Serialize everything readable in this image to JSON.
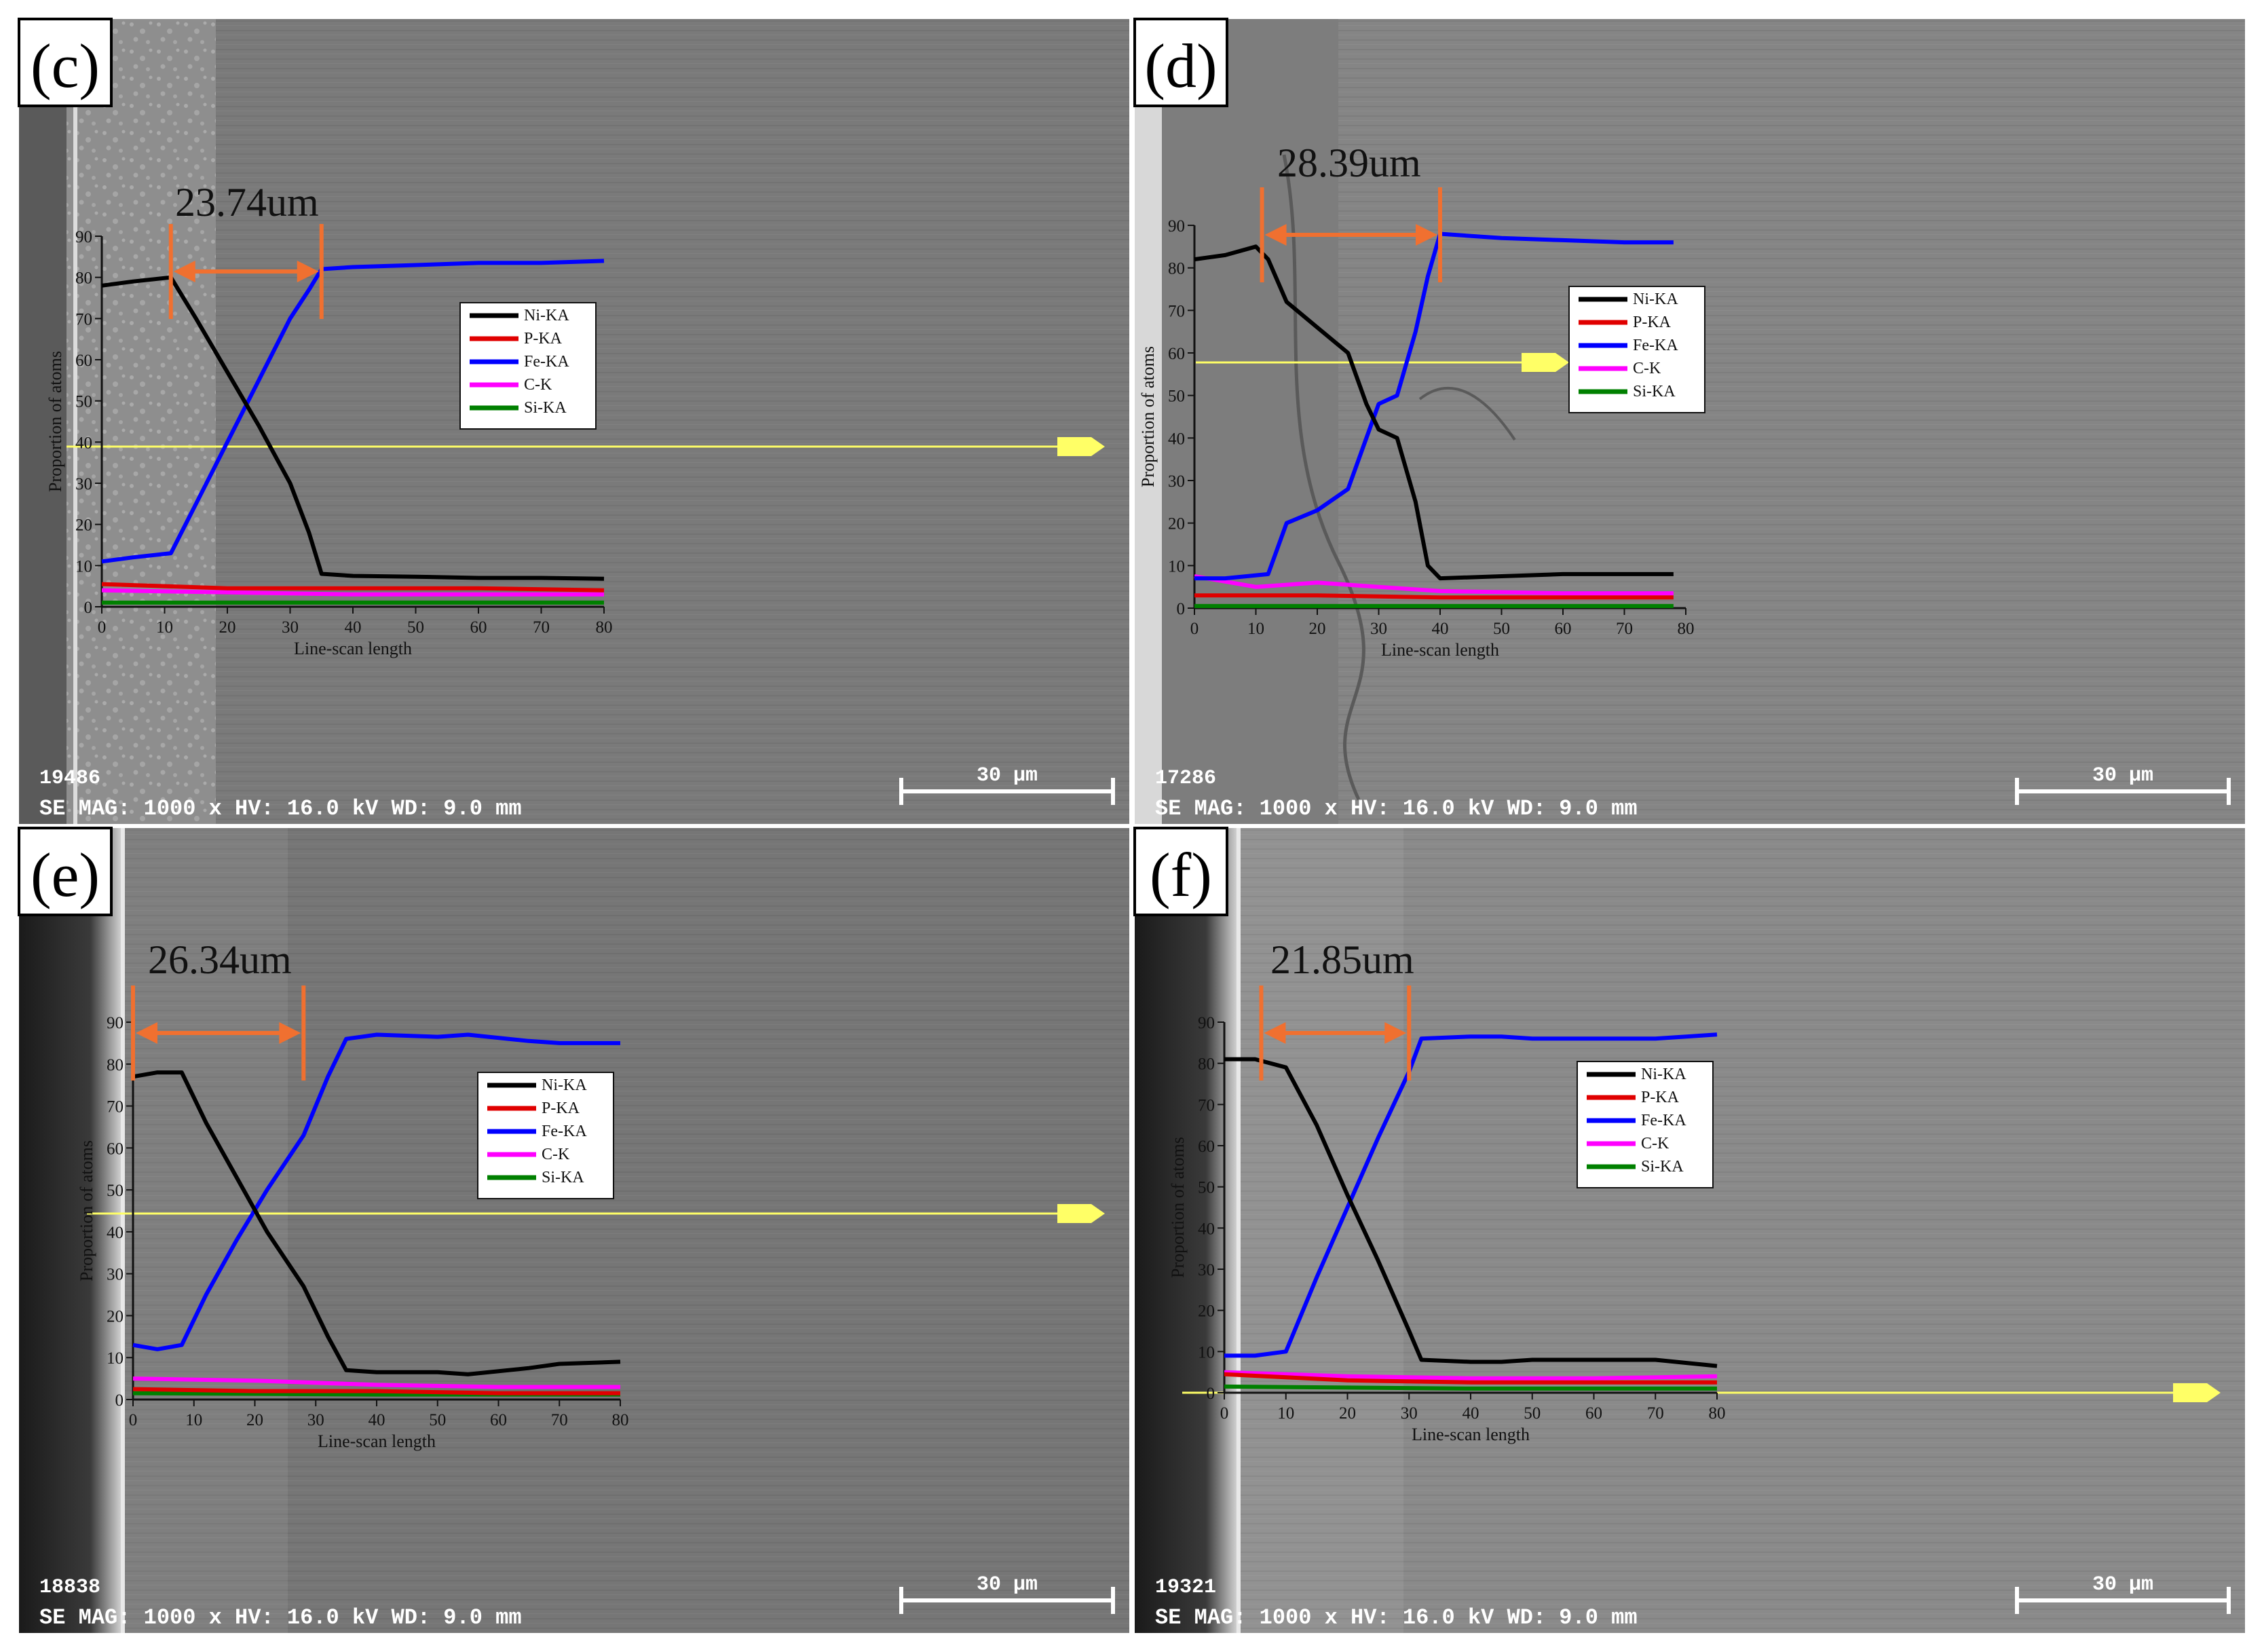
{
  "figure": {
    "description_free": true,
    "axis_title_y": "Proportion of atoms",
    "axis_title_x": "Line-scan length",
    "legend": [
      {
        "name": "Ni-KA",
        "color": "#000000"
      },
      {
        "name": "P-KA",
        "color": "#e00000"
      },
      {
        "name": "Fe-KA",
        "color": "#0000ff"
      },
      {
        "name": "C-K",
        "color": "#ff00ff"
      },
      {
        "name": "Si-KA",
        "color": "#008000"
      }
    ],
    "colors": {
      "thickness_marker": "#f07030",
      "scan_line": "#ffff66"
    },
    "scale_bar": "30 μm",
    "mag_text": "SE MAG: 1000 x  HV: 16.0 kV  WD: 9.0 mm"
  },
  "chart_data": [
    {
      "type": "line",
      "panel": "(c)",
      "image_id": "19486",
      "thickness_label": "23.74um",
      "thickness_range": [
        11,
        35
      ],
      "xlim": [
        0,
        80
      ],
      "ylim": [
        0,
        90
      ],
      "xticks": [
        0,
        10,
        20,
        30,
        40,
        50,
        60,
        70,
        80
      ],
      "yticks": [
        0,
        10,
        20,
        30,
        40,
        50,
        60,
        70,
        80,
        90
      ],
      "xlabel": "Line-scan length",
      "ylabel": "Proportion of atoms",
      "series": [
        {
          "name": "Ni-KA",
          "x": [
            0,
            5,
            11,
            15,
            20,
            25,
            30,
            33,
            35,
            40,
            50,
            60,
            70,
            80
          ],
          "values": [
            78,
            79,
            80,
            70,
            57,
            44,
            30,
            18,
            8,
            7.5,
            7.3,
            7,
            7,
            6.8
          ]
        },
        {
          "name": "P-KA",
          "x": [
            0,
            20,
            40,
            60,
            80
          ],
          "values": [
            5.5,
            4.5,
            4.5,
            4.5,
            4
          ]
        },
        {
          "name": "Fe-KA",
          "x": [
            0,
            5,
            11,
            15,
            20,
            25,
            30,
            33,
            35,
            40,
            50,
            60,
            70,
            80
          ],
          "values": [
            11,
            12,
            13,
            25,
            40,
            55,
            70,
            77,
            82,
            82.5,
            83,
            83.5,
            83.5,
            84
          ]
        },
        {
          "name": "C-K",
          "x": [
            0,
            20,
            40,
            60,
            80
          ],
          "values": [
            4,
            3.5,
            3,
            3,
            3
          ]
        },
        {
          "name": "Si-KA",
          "x": [
            0,
            40,
            80
          ],
          "values": [
            1,
            1,
            1
          ]
        }
      ]
    },
    {
      "type": "line",
      "panel": "(d)",
      "image_id": "17286",
      "thickness_label": "28.39um",
      "thickness_range": [
        11,
        40
      ],
      "xlim": [
        0,
        80
      ],
      "ylim": [
        0,
        90
      ],
      "xticks": [
        0,
        10,
        20,
        30,
        40,
        50,
        60,
        70,
        80
      ],
      "yticks": [
        0,
        10,
        20,
        30,
        40,
        50,
        60,
        70,
        80,
        90
      ],
      "xlabel": "Line-scan length",
      "ylabel": "Proportion of atoms",
      "series": [
        {
          "name": "Ni-KA",
          "x": [
            0,
            5,
            10,
            12,
            15,
            20,
            25,
            28,
            30,
            33,
            36,
            38,
            40,
            50,
            60,
            70,
            78
          ],
          "values": [
            82,
            83,
            85,
            82,
            72,
            66,
            60,
            48,
            42,
            40,
            25,
            10,
            7,
            7.5,
            8,
            8,
            8
          ]
        },
        {
          "name": "P-KA",
          "x": [
            0,
            20,
            40,
            60,
            78
          ],
          "values": [
            3,
            3,
            2.5,
            2.5,
            2.5
          ]
        },
        {
          "name": "Fe-KA",
          "x": [
            0,
            5,
            12,
            15,
            20,
            25,
            28,
            30,
            33,
            36,
            38,
            40,
            50,
            60,
            70,
            78
          ],
          "values": [
            7,
            7,
            8,
            20,
            23,
            28,
            40,
            48,
            50,
            65,
            78,
            88,
            87,
            86.5,
            86,
            86
          ]
        },
        {
          "name": "C-K",
          "x": [
            0,
            10,
            20,
            30,
            40,
            60,
            78
          ],
          "values": [
            7.5,
            5,
            6,
            5,
            4,
            3.5,
            3.5
          ]
        },
        {
          "name": "Si-KA",
          "x": [
            0,
            40,
            78
          ],
          "values": [
            0.5,
            0.5,
            0.5
          ]
        }
      ]
    },
    {
      "type": "line",
      "panel": "(e)",
      "image_id": "18838",
      "thickness_label": "26.34um",
      "thickness_range": [
        0,
        28
      ],
      "xlim": [
        0,
        80
      ],
      "ylim": [
        0,
        90
      ],
      "xticks": [
        0,
        10,
        20,
        30,
        40,
        50,
        60,
        70,
        80
      ],
      "yticks": [
        0,
        10,
        20,
        30,
        40,
        50,
        60,
        70,
        80,
        90
      ],
      "xlabel": "Line-scan length",
      "ylabel": "Proportion of atoms",
      "series": [
        {
          "name": "Ni-KA",
          "x": [
            0,
            4,
            8,
            12,
            17,
            22,
            28,
            32,
            35,
            40,
            50,
            55,
            65,
            70,
            80
          ],
          "values": [
            77,
            78,
            78,
            66,
            53,
            40,
            27,
            15,
            7,
            6.5,
            6.5,
            6,
            7.5,
            8.5,
            9
          ]
        },
        {
          "name": "P-KA",
          "x": [
            0,
            20,
            40,
            60,
            80
          ],
          "values": [
            2.5,
            2,
            2,
            1.5,
            1.5
          ]
        },
        {
          "name": "Fe-KA",
          "x": [
            0,
            4,
            8,
            12,
            17,
            22,
            28,
            32,
            35,
            40,
            50,
            55,
            65,
            70,
            80
          ],
          "values": [
            13,
            12,
            13,
            25,
            38,
            50,
            63,
            77,
            86,
            87,
            86.5,
            87,
            85.5,
            85,
            85
          ]
        },
        {
          "name": "C-K",
          "x": [
            0,
            20,
            40,
            60,
            80
          ],
          "values": [
            5,
            4.5,
            3.5,
            3,
            3
          ]
        },
        {
          "name": "Si-KA",
          "x": [
            0,
            40,
            80
          ],
          "values": [
            1.5,
            1.2,
            1.2
          ]
        }
      ]
    },
    {
      "type": "line",
      "panel": "(f)",
      "image_id": "19321",
      "thickness_label": "21.85um",
      "thickness_range": [
        6,
        30
      ],
      "xlim": [
        0,
        80
      ],
      "ylim": [
        0,
        90
      ],
      "xticks": [
        0,
        10,
        20,
        30,
        40,
        50,
        60,
        70,
        80
      ],
      "yticks": [
        0,
        10,
        20,
        30,
        40,
        50,
        60,
        70,
        80,
        90
      ],
      "xlabel": "Line-scan length",
      "ylabel": "Proportion of atoms",
      "series": [
        {
          "name": "Ni-KA",
          "x": [
            0,
            5,
            10,
            15,
            20,
            25,
            30,
            32,
            40,
            45,
            50,
            60,
            70,
            80
          ],
          "values": [
            81,
            81,
            79,
            65,
            48,
            32,
            15,
            8,
            7.5,
            7.5,
            8,
            8,
            8,
            6.5
          ]
        },
        {
          "name": "P-KA",
          "x": [
            0,
            20,
            40,
            60,
            80
          ],
          "values": [
            4.5,
            3,
            2.5,
            2.5,
            2.5
          ]
        },
        {
          "name": "Fe-KA",
          "x": [
            0,
            5,
            10,
            15,
            20,
            25,
            30,
            32,
            40,
            45,
            50,
            60,
            70,
            80
          ],
          "values": [
            9,
            9,
            10,
            28,
            45,
            62,
            78,
            86,
            86.5,
            86.5,
            86,
            86,
            86,
            87
          ]
        },
        {
          "name": "C-K",
          "x": [
            0,
            20,
            40,
            60,
            80
          ],
          "values": [
            5,
            4,
            3.5,
            3.5,
            4
          ]
        },
        {
          "name": "Si-KA",
          "x": [
            0,
            40,
            80
          ],
          "values": [
            1.5,
            1,
            1
          ]
        }
      ]
    }
  ]
}
